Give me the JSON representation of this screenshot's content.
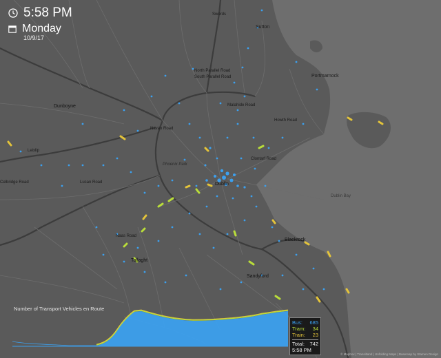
{
  "clock": {
    "time": "5:58 PM",
    "day": "Monday",
    "date": "10/9/17",
    "clock_icon": "clock-icon",
    "calendar_icon": "calendar-icon"
  },
  "labels": {
    "swords": "Swords",
    "sutton": "Sutton",
    "portmarnock": "Portmarnock",
    "north_parallel": "North Parallel Road",
    "south_parallel": "South Parallel Road",
    "dunboyne": "Dunboyne",
    "leixlip": "Leixlip",
    "phoenix_park": "Phoenix Park",
    "dublin": "Dublin",
    "dublin_bay": "Dublin Bay",
    "blackrock": "Blackrock",
    "sandyford": "Sandyford",
    "tallaght": "Tallaght",
    "naas_road": "Naas Road",
    "lucan_road": "Lucan Road",
    "celbridge_road": "Celbridge Road",
    "clontarf_road": "Clontarf Road",
    "navan_road": "Navan Road",
    "malahide_road": "Malahide Road",
    "howth_road": "Howth Road"
  },
  "chart_data": {
    "type": "area",
    "title": "Number of Transport Vehicles en Route",
    "series": [
      {
        "name": "Bus",
        "color": "#3ca0ee",
        "current": 685
      },
      {
        "name": "Tram",
        "color": "#b9dd3a",
        "current": 34
      },
      {
        "name": "Train",
        "color": "#e4c43a",
        "current": 23
      }
    ],
    "total": 742
  },
  "stats": {
    "bus_label": "Bus:",
    "bus_value": "685",
    "tram_label": "Tram:",
    "tram_value": "34",
    "train_label": "Train:",
    "train_value": "23",
    "total_label": "Total:",
    "total_value": "742",
    "time": "5:58 PM"
  },
  "credit": "© Mapbox | Transitland | Unfolding Maps | Basemap by Stamen Design",
  "colors": {
    "land": "#5a5a5a",
    "sea": "#6e6e6e",
    "motorway": "#3c3c3c",
    "road": "#6d6d6d",
    "bus": "#3ca0ee",
    "tram": "#b9dd3a",
    "train": "#e4c43a"
  }
}
